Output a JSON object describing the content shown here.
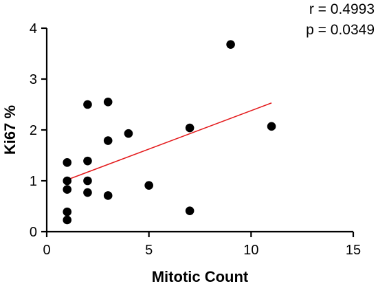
{
  "chart_data": {
    "type": "scatter",
    "title": "",
    "xlabel": "Mitotic Count",
    "ylabel": "Ki67 %",
    "xlim": [
      0,
      15
    ],
    "ylim": [
      0,
      4
    ],
    "xticks": [
      0,
      5,
      10,
      15
    ],
    "yticks": [
      0,
      1,
      2,
      3,
      4
    ],
    "grid": false,
    "annotations": {
      "r_text": "r = 0.4993",
      "p_text": "p = 0.0349"
    },
    "point_color": "#000000",
    "trend_color": "#e41a1c",
    "points": [
      {
        "x": 1,
        "y": 0.23
      },
      {
        "x": 1,
        "y": 0.39
      },
      {
        "x": 1,
        "y": 0.83
      },
      {
        "x": 1,
        "y": 1.0
      },
      {
        "x": 1,
        "y": 1.36
      },
      {
        "x": 2,
        "y": 0.77
      },
      {
        "x": 2,
        "y": 1.0
      },
      {
        "x": 2,
        "y": 1.39
      },
      {
        "x": 2,
        "y": 2.5
      },
      {
        "x": 3,
        "y": 0.71
      },
      {
        "x": 3,
        "y": 1.79
      },
      {
        "x": 3,
        "y": 2.55
      },
      {
        "x": 4,
        "y": 1.93
      },
      {
        "x": 5,
        "y": 0.91
      },
      {
        "x": 7,
        "y": 0.41
      },
      {
        "x": 7,
        "y": 2.04
      },
      {
        "x": 9,
        "y": 3.68
      },
      {
        "x": 11,
        "y": 2.07
      }
    ],
    "trendline": {
      "x": [
        1,
        11
      ],
      "y": [
        1.02,
        2.53
      ]
    }
  }
}
